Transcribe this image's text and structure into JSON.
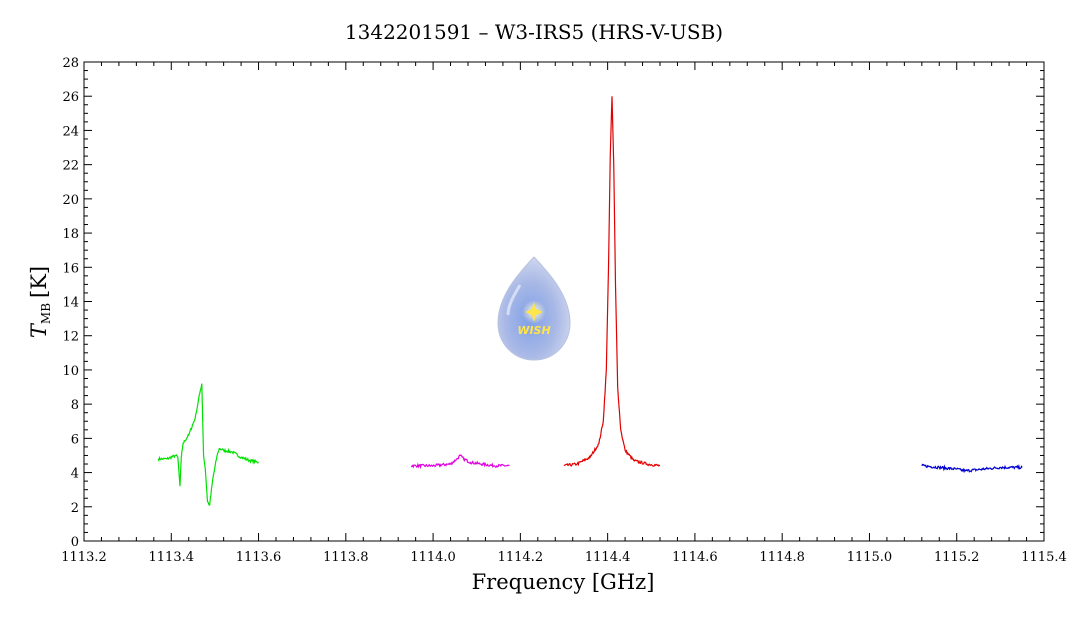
{
  "chart_data": {
    "type": "line",
    "title": "1342201591 – W3-IRS5 (HRS-V-USB)",
    "xlabel": "Frequency [GHz]",
    "ylabel_main": "T",
    "ylabel_sub": "MB",
    "ylabel_unit": "[K]",
    "xlim": [
      1113.2,
      1115.4
    ],
    "ylim": [
      0,
      28
    ],
    "x_ticks": [
      "1113.2",
      "1113.4",
      "1113.6",
      "1113.8",
      "1114.0",
      "1114.2",
      "1114.4",
      "1114.6",
      "1114.8",
      "1115.0",
      "1115.2",
      "1115.4"
    ],
    "y_ticks": [
      "0",
      "2",
      "4",
      "6",
      "8",
      "10",
      "12",
      "14",
      "16",
      "18",
      "20",
      "22",
      "24",
      "26",
      "28"
    ],
    "grid": false,
    "series": [
      {
        "color": "#00e000",
        "x": [
          1113.37,
          1113.39,
          1113.41,
          1113.415,
          1113.42,
          1113.423,
          1113.427,
          1113.44,
          1113.455,
          1113.465,
          1113.47,
          1113.474,
          1113.478,
          1113.483,
          1113.488,
          1113.495,
          1113.505,
          1113.51,
          1113.52,
          1113.54,
          1113.56,
          1113.58,
          1113.6
        ],
        "y": [
          4.8,
          4.8,
          5.0,
          4.9,
          3.2,
          4.9,
          5.7,
          6.2,
          7.2,
          8.6,
          9.2,
          5.0,
          4.2,
          2.3,
          2.1,
          3.6,
          5.0,
          5.4,
          5.3,
          5.2,
          4.9,
          4.7,
          4.6
        ]
      },
      {
        "color": "#e000e0",
        "x": [
          1113.95,
          1114.0,
          1114.04,
          1114.055,
          1114.062,
          1114.07,
          1114.085,
          1114.11,
          1114.14,
          1114.175
        ],
        "y": [
          4.4,
          4.4,
          4.5,
          4.8,
          5.0,
          4.8,
          4.6,
          4.5,
          4.4,
          4.4
        ]
      },
      {
        "color": "#e00000",
        "x": [
          1114.3,
          1114.33,
          1114.36,
          1114.38,
          1114.39,
          1114.397,
          1114.402,
          1114.406,
          1114.41,
          1114.414,
          1114.418,
          1114.423,
          1114.43,
          1114.44,
          1114.46,
          1114.49,
          1114.52
        ],
        "y": [
          4.4,
          4.5,
          4.9,
          5.7,
          7.0,
          10.0,
          16.0,
          22.5,
          26.0,
          22.0,
          15.0,
          9.0,
          6.5,
          5.3,
          4.7,
          4.5,
          4.4
        ]
      },
      {
        "color": "#0000d0",
        "x": [
          1115.12,
          1115.16,
          1115.2,
          1115.22,
          1115.26,
          1115.3,
          1115.35
        ],
        "y": [
          4.4,
          4.3,
          4.2,
          4.1,
          4.2,
          4.3,
          4.3
        ]
      }
    ],
    "logo_text": "WISH"
  }
}
